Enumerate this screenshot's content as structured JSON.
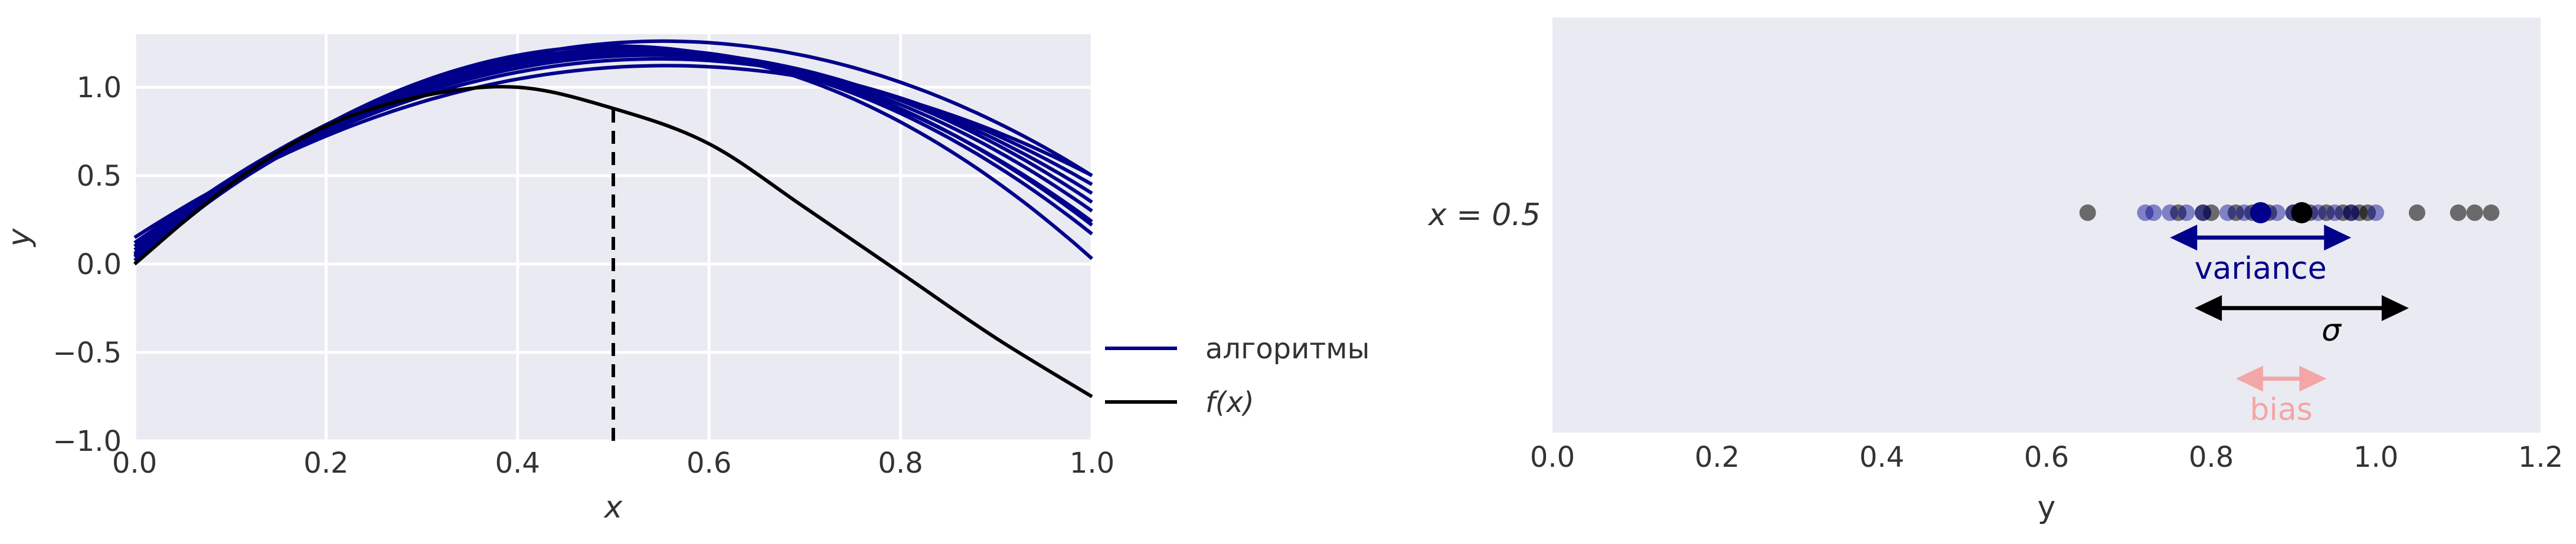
{
  "colors": {
    "background": "#eaeaf2",
    "grid": "#ffffff",
    "algorithms": "#00008b",
    "target": "#000000",
    "variance": "#00008b",
    "sigma": "#000000",
    "bias": "#f2a6a6"
  },
  "chart_data": [
    {
      "type": "line",
      "title": "",
      "xlabel": "x",
      "ylabel": "y",
      "xlim": [
        0.0,
        1.0
      ],
      "ylim": [
        -1.0,
        1.3
      ],
      "grid": true,
      "legend_placement": "outside-right-bottom",
      "xticks": [
        {
          "value": 0.0,
          "label": "0.0"
        },
        {
          "value": 0.2,
          "label": "0.2"
        },
        {
          "value": 0.4,
          "label": "0.4"
        },
        {
          "value": 0.6,
          "label": "0.6"
        },
        {
          "value": 0.8,
          "label": "0.8"
        },
        {
          "value": 1.0,
          "label": "1.0"
        }
      ],
      "yticks": [
        {
          "value": -1.0,
          "label": "−1.0"
        },
        {
          "value": -0.5,
          "label": "−0.5"
        },
        {
          "value": 0.0,
          "label": "0.0"
        },
        {
          "value": 0.5,
          "label": "0.5"
        },
        {
          "value": 1.0,
          "label": "1.0"
        }
      ],
      "legend": [
        {
          "name": "алгоритмы",
          "color": "#00008b"
        },
        {
          "name": "f(x)",
          "color": "#000000"
        }
      ],
      "vline": {
        "x": 0.5,
        "y_from": -1.0,
        "y_to": 0.92,
        "style": "dashed"
      },
      "target_curve": {
        "name": "f(x)",
        "x": [
          0.0,
          0.1,
          0.2,
          0.3,
          0.4,
          0.5,
          0.6,
          0.7,
          0.8,
          0.9,
          1.0
        ],
        "y": [
          0.0,
          0.45,
          0.78,
          0.95,
          1.0,
          0.88,
          0.68,
          0.32,
          -0.05,
          -0.42,
          -0.75
        ]
      },
      "algorithm_curves": [
        {
          "c": 0.0,
          "a": 4.9,
          "b": 4.87
        },
        {
          "c": 0.02,
          "a": 4.6,
          "b": 4.45
        },
        {
          "c": 0.04,
          "a": 4.4,
          "b": 4.2
        },
        {
          "c": 0.06,
          "a": 4.3,
          "b": 4.06
        },
        {
          "c": 0.08,
          "a": 4.2,
          "b": 3.93
        },
        {
          "c": 0.1,
          "a": 4.0,
          "b": 3.7
        },
        {
          "c": 0.12,
          "a": 3.8,
          "b": 3.47
        },
        {
          "c": 0.15,
          "a": 3.5,
          "b": 3.15
        },
        {
          "c": 0.1,
          "a": 4.2,
          "b": 3.8
        },
        {
          "c": 0.05,
          "a": 4.5,
          "b": 4.33
        }
      ]
    },
    {
      "type": "scatter",
      "title": "",
      "xlabel": "y",
      "ylabel": "",
      "xlim": [
        0.0,
        1.2
      ],
      "ylim": [
        0.0,
        1.0
      ],
      "grid": false,
      "ytick_label": "x = 0.5",
      "xticks": [
        {
          "value": 0.0,
          "label": "0.0"
        },
        {
          "value": 0.2,
          "label": "0.2"
        },
        {
          "value": 0.4,
          "label": "0.4"
        },
        {
          "value": 0.6,
          "label": "0.6"
        },
        {
          "value": 0.8,
          "label": "0.8"
        },
        {
          "value": 1.0,
          "label": "1.0"
        },
        {
          "value": 1.2,
          "label": "1.2"
        }
      ],
      "row_y": 0.53,
      "black_points": [
        0.65,
        0.76,
        0.79,
        0.8,
        0.83,
        0.85,
        0.87,
        0.9,
        0.92,
        0.94,
        0.96,
        0.97,
        0.98,
        0.99,
        1.05,
        1.1,
        1.12,
        1.14
      ],
      "blue_points": [
        0.72,
        0.73,
        0.75,
        0.77,
        0.79,
        0.82,
        0.84,
        0.86,
        0.88,
        0.9,
        0.93,
        0.95,
        0.97,
        1.0
      ],
      "black_mean": 0.91,
      "blue_mean": 0.86,
      "variance_arrow": {
        "x_from": 0.75,
        "x_to": 0.97,
        "y": 0.47,
        "label": "variance"
      },
      "sigma_arrow": {
        "x_from": 0.78,
        "x_to": 1.04,
        "y": 0.3,
        "label": "σ"
      },
      "bias_arrow": {
        "x_from": 0.83,
        "x_to": 0.94,
        "y": 0.13,
        "label": "bias"
      }
    }
  ]
}
